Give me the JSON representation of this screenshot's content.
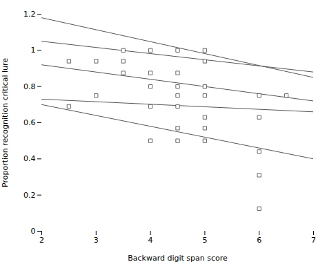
{
  "chart_data": {
    "type": "scatter",
    "xlabel": "Backward digit span score",
    "ylabel": "Proportion recognition critical lure",
    "xlim": [
      2,
      7
    ],
    "ylim": [
      0.0,
      1.2
    ],
    "xticks": [
      2,
      3,
      4,
      5,
      6,
      7
    ],
    "yticks": [
      0.0,
      0.2,
      0.4,
      0.6,
      0.8,
      1.0,
      1.2
    ],
    "series": [
      {
        "type": "line",
        "color": "#555555",
        "x": [
          2,
          7
        ],
        "values": [
          1.18,
          0.85
        ]
      },
      {
        "type": "line",
        "color": "#555555",
        "x": [
          2,
          7
        ],
        "values": [
          1.05,
          0.88
        ]
      },
      {
        "type": "line",
        "color": "#555555",
        "x": [
          2,
          7
        ],
        "values": [
          0.92,
          0.72
        ]
      },
      {
        "type": "line",
        "color": "#555555",
        "x": [
          2,
          7
        ],
        "values": [
          0.73,
          0.66
        ]
      },
      {
        "type": "line",
        "color": "#555555",
        "x": [
          2,
          7
        ],
        "values": [
          0.7,
          0.4
        ]
      },
      {
        "type": "scatter",
        "marker": "square",
        "color": "#555555",
        "x": [
          2.5,
          2.5,
          3.0,
          3.0,
          3.5,
          3.5,
          3.5,
          4.0,
          4.0,
          4.0,
          4.0,
          4.0,
          4.5,
          4.5,
          4.5,
          4.5,
          4.5,
          4.5,
          4.5,
          5.0,
          5.0,
          5.0,
          5.0,
          5.0,
          5.0,
          5.0,
          6.0,
          6.0,
          6.0,
          6.0,
          6.0,
          6.5
        ],
        "values": [
          0.94,
          0.69,
          0.94,
          0.75,
          1.0,
          0.94,
          0.875,
          1.0,
          0.875,
          0.8,
          0.69,
          0.5,
          1.0,
          0.875,
          0.8,
          0.75,
          0.69,
          0.57,
          0.5,
          1.0,
          0.94,
          0.8,
          0.75,
          0.63,
          0.57,
          0.5,
          0.75,
          0.63,
          0.44,
          0.31,
          0.125,
          0.75
        ]
      }
    ]
  }
}
